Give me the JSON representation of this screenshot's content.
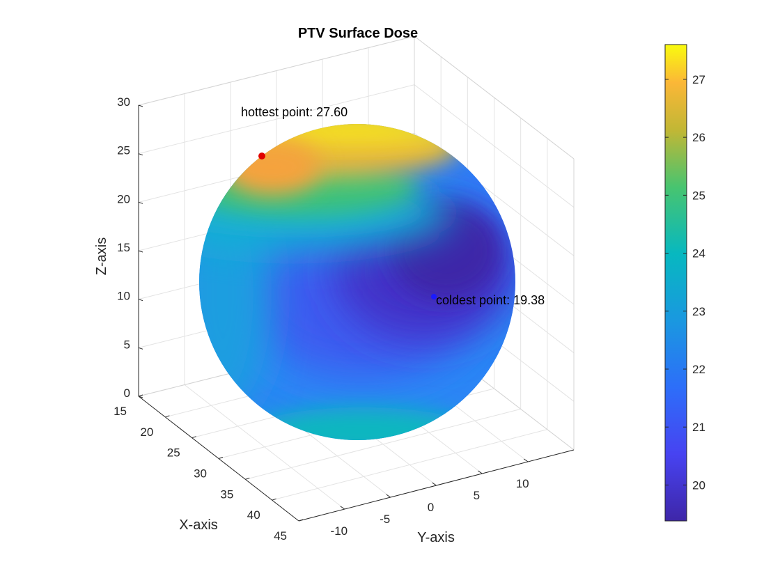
{
  "chart_data": {
    "type": "surface3d",
    "title": "PTV Surface Dose",
    "xlabel": "X-axis",
    "ylabel": "Y-axis",
    "zlabel": "Z-axis",
    "xlim": [
      15,
      45
    ],
    "ylim": [
      -15,
      15
    ],
    "zlim": [
      0,
      30
    ],
    "x_ticks": [
      "15",
      "20",
      "25",
      "30",
      "35",
      "40",
      "45"
    ],
    "y_ticks": [
      "-10",
      "-5",
      "0",
      "5",
      "10"
    ],
    "z_ticks": [
      "0",
      "5",
      "10",
      "15",
      "20",
      "25",
      "30"
    ],
    "grid": true,
    "colormap": "parula",
    "colorbar": {
      "location": "right",
      "range": [
        19.38,
        27.6
      ],
      "ticks": [
        "20",
        "21",
        "22",
        "23",
        "24",
        "25",
        "26",
        "27"
      ]
    },
    "annotations": [
      {
        "label": "hottest point: 27.60",
        "value": 27.6,
        "marker_color": "#e00000"
      },
      {
        "label": "coldest point: 19.38",
        "value": 19.38,
        "marker_color": "#1a1aff"
      }
    ]
  }
}
